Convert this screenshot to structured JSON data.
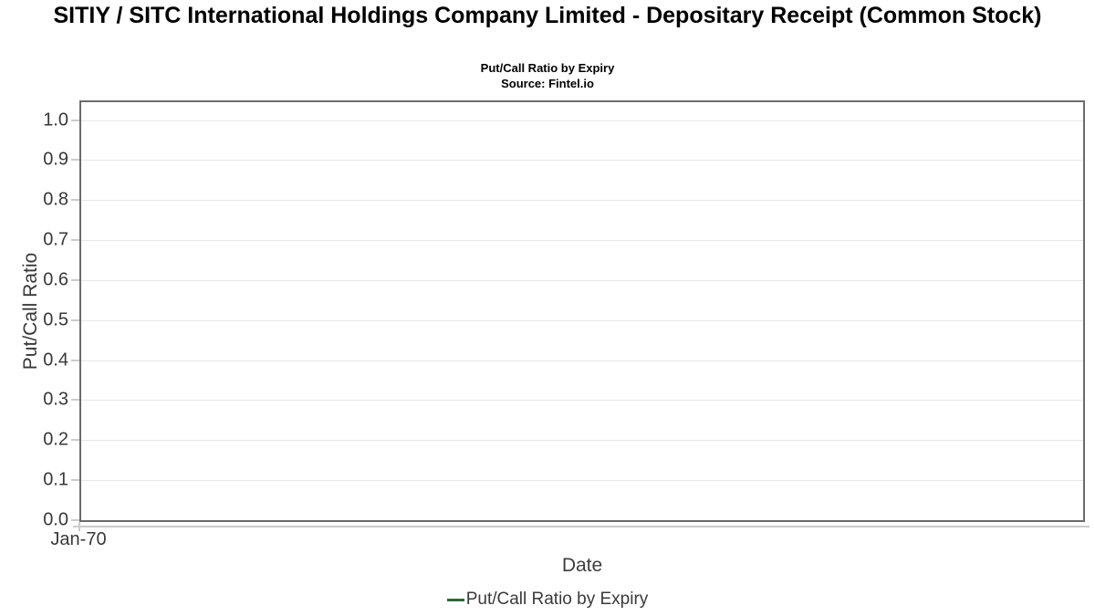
{
  "header": {
    "title": "SITIY / SITC International Holdings Company Limited - Depositary Receipt (Common Stock)",
    "subtitle": "Put/Call Ratio by Expiry",
    "source": "Source: Fintel.io"
  },
  "axes": {
    "x_label": "Date",
    "y_label": "Put/Call Ratio",
    "x_tick_labels": [
      "Jan-70"
    ],
    "y_tick_labels": [
      "1.0",
      "0.9",
      "0.8",
      "0.7",
      "0.6",
      "0.5",
      "0.4",
      "0.3",
      "0.2",
      "0.1",
      "0.0"
    ]
  },
  "legend": {
    "items": [
      {
        "label": "Put/Call Ratio by Expiry",
        "color": "#2b6a3b"
      }
    ]
  },
  "colors": {
    "plot_border": "#6b6b6b",
    "gridline": "#e8e8e8",
    "axis_tick": "#cbcbcb",
    "tick_text": "#383838",
    "series_green": "#2b6a3b"
  },
  "chart_data": {
    "type": "line",
    "title": "SITIY / SITC International Holdings Company Limited - Depositary Receipt (Common Stock)",
    "subtitle": "Put/Call Ratio by Expiry",
    "source": "Source: Fintel.io",
    "xlabel": "Date",
    "ylabel": "Put/Call Ratio",
    "x_tick_labels": [
      "Jan-70"
    ],
    "y_ticks": [
      0.0,
      0.1,
      0.2,
      0.3,
      0.4,
      0.5,
      0.6,
      0.7,
      0.8,
      0.9,
      1.0
    ],
    "ylim": [
      0,
      1.05
    ],
    "grid": true,
    "legend_position": "bottom",
    "series": [
      {
        "name": "Put/Call Ratio by Expiry",
        "color": "#2b6a3b",
        "x": [],
        "values": []
      }
    ]
  }
}
